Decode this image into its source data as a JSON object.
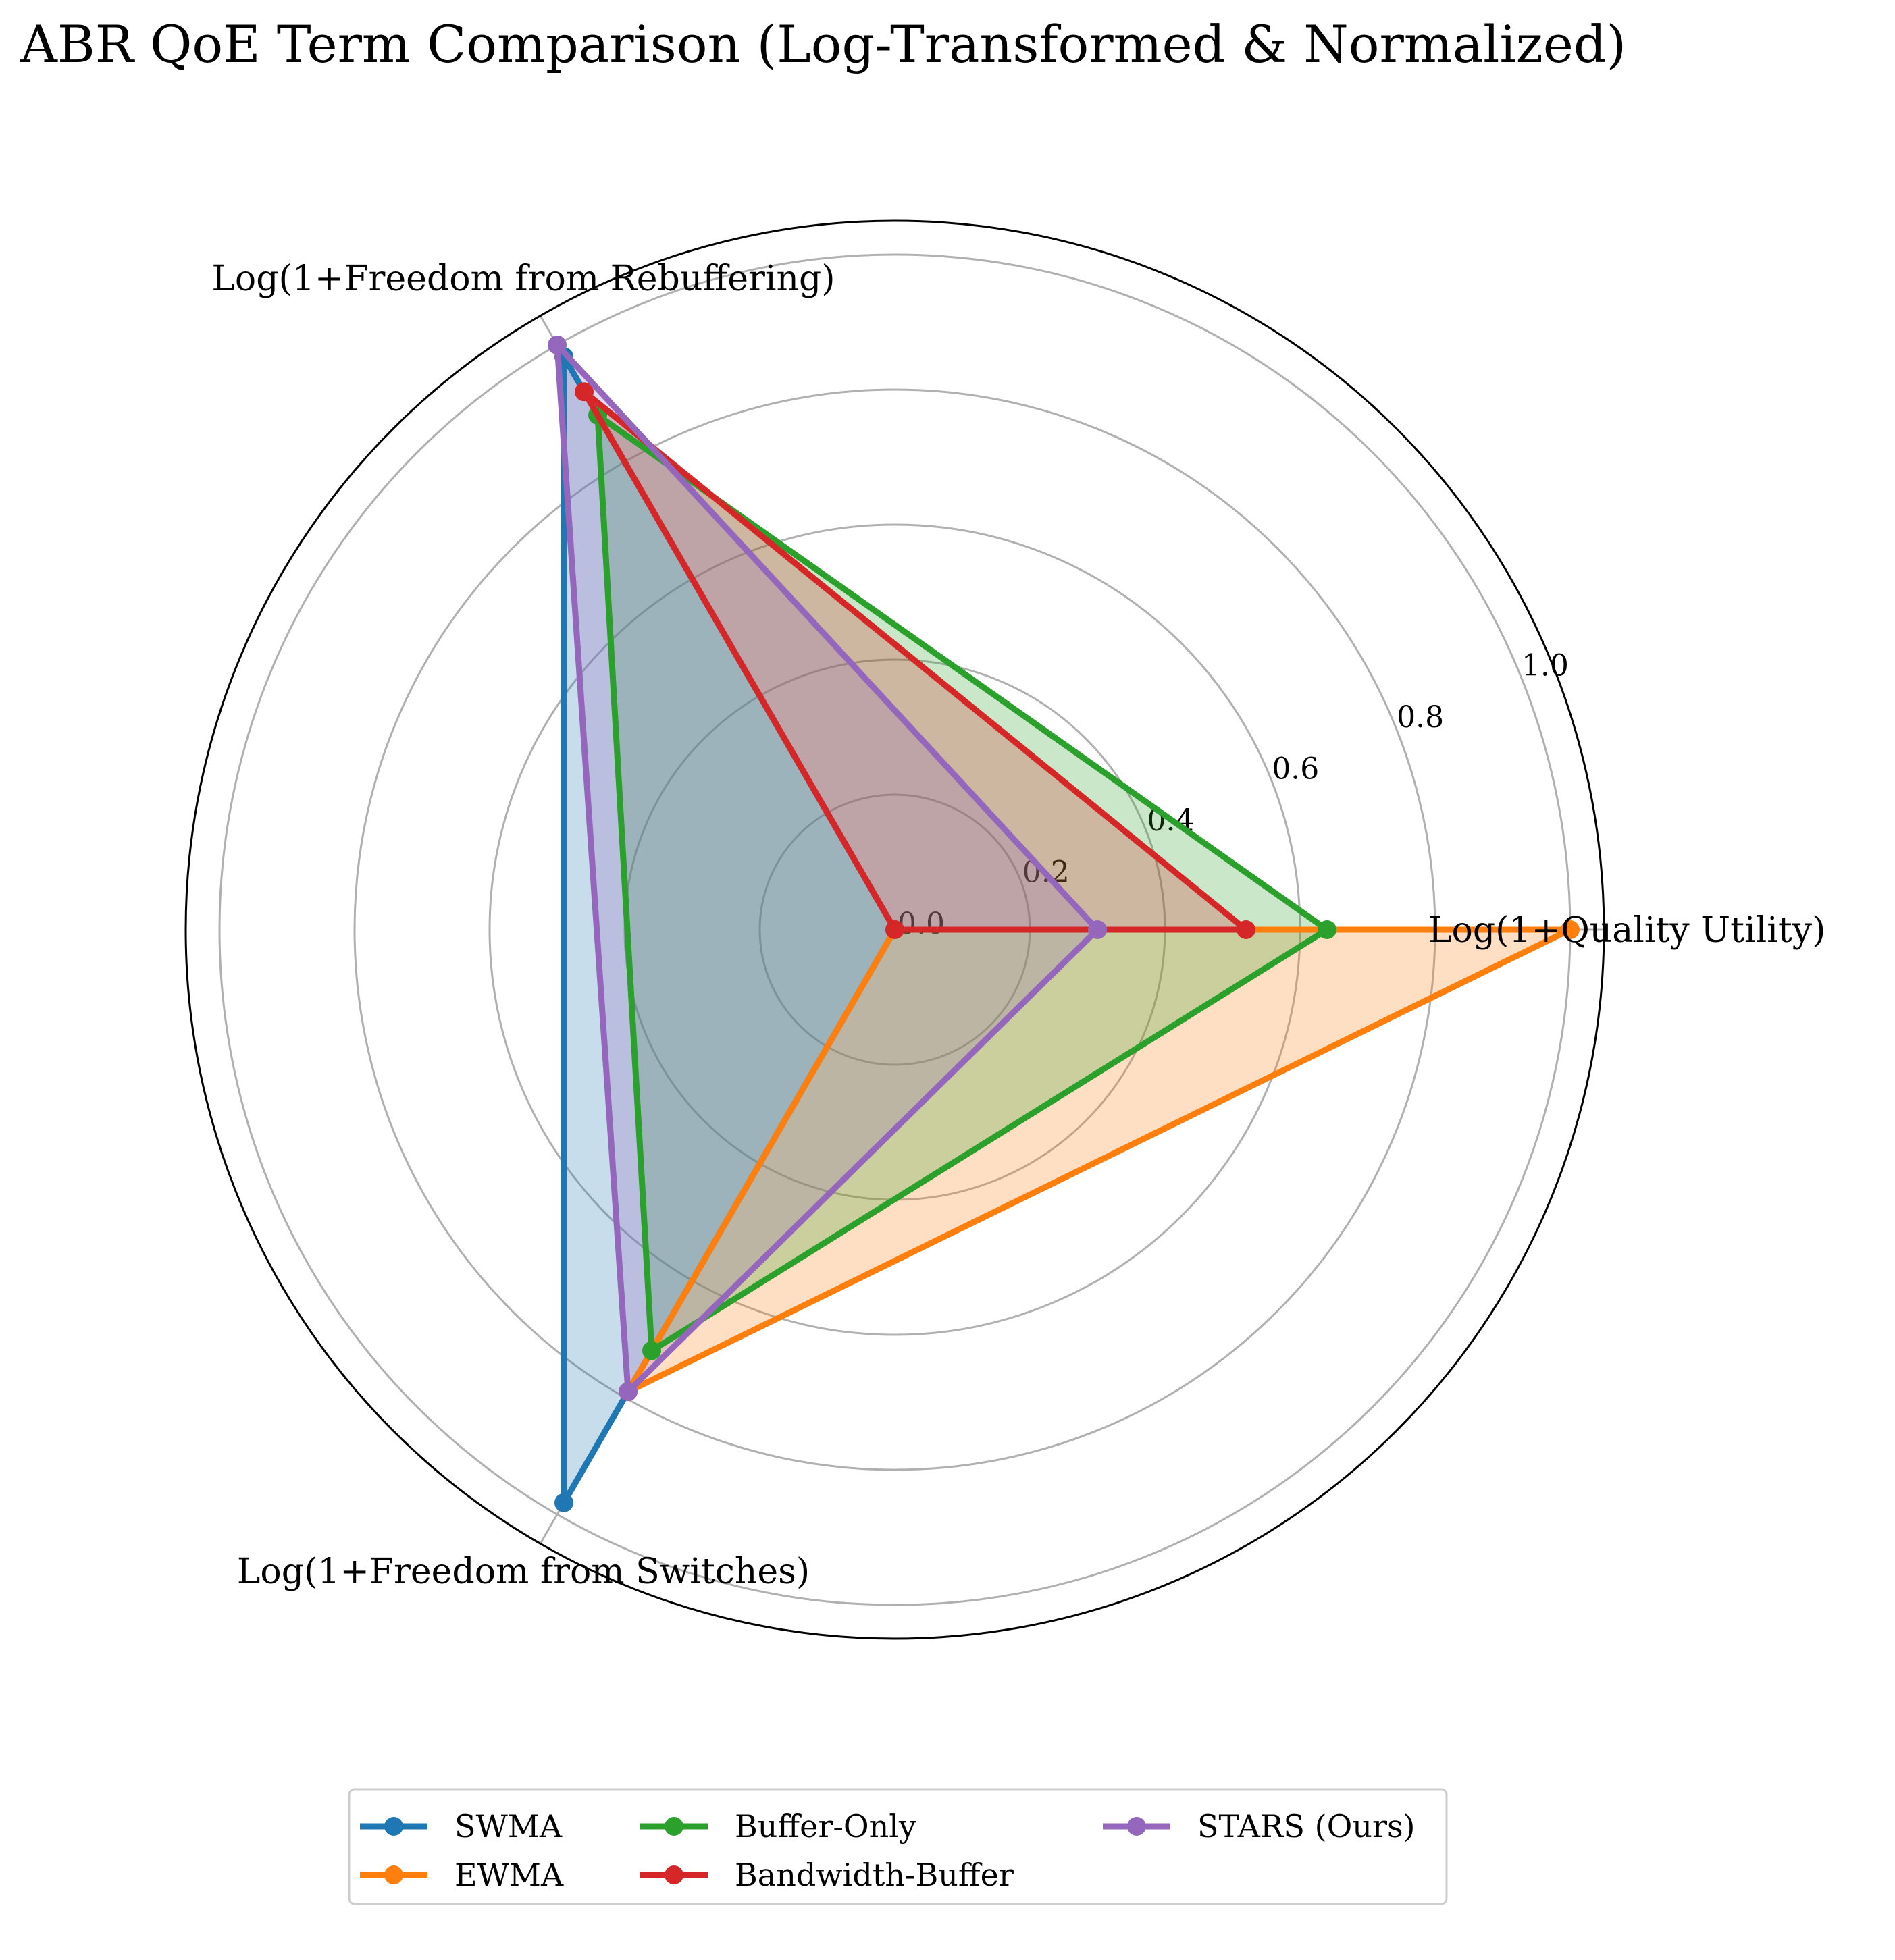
{
  "chart_data": {
    "type": "radar",
    "title": "ABR QoE Term Comparison (Log-Transformed & Normalized)",
    "axes": [
      "Log(1+Quality Utility)",
      "Log(1+Freedom from Rebuffering)",
      "Log(1+Freedom from Switches)"
    ],
    "rlim": [
      0,
      1.05
    ],
    "r_ticks": [
      "0.0",
      "0.2",
      "0.4",
      "0.6",
      "0.8",
      "1.0"
    ],
    "r_tick_values": [
      0,
      0.2,
      0.4,
      0.6,
      0.8,
      1.0
    ],
    "grid": true,
    "legend_position": "bottom-center",
    "series": [
      {
        "name": "SWMA",
        "color": "#1f77b4",
        "values": [
          0.0,
          0.98,
          0.98
        ]
      },
      {
        "name": "EWMA",
        "color": "#ff7f0e",
        "values": [
          1.0,
          0.0,
          0.79
        ]
      },
      {
        "name": "Buffer-Only",
        "color": "#2ca02c",
        "values": [
          0.64,
          0.88,
          0.72
        ]
      },
      {
        "name": "Bandwidth-Buffer",
        "color": "#d62728",
        "values": [
          0.52,
          0.92,
          0.0
        ]
      },
      {
        "name": "STARS (Ours)",
        "color": "#9467bd",
        "values": [
          0.3,
          1.0,
          0.79
        ]
      }
    ]
  }
}
